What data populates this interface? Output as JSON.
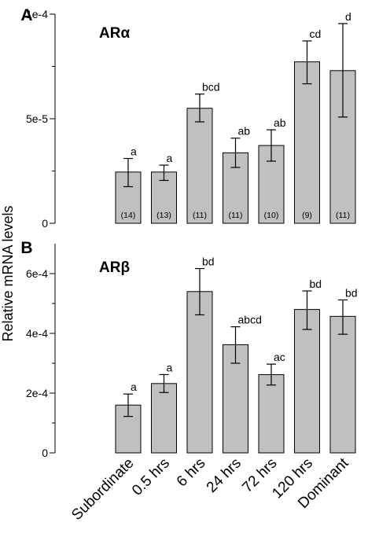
{
  "ylabel": "Relative mRNA levels",
  "categories": [
    "Subordinate",
    "0.5 hrs",
    "6 hrs",
    "24 hrs",
    "72 hrs",
    "120 hrs",
    "Dominant"
  ],
  "chart_data": [
    {
      "type": "bar",
      "panel": "A",
      "title": "ARα",
      "ylabel": "Relative mRNA levels",
      "ylim": [
        0,
        0.0001
      ],
      "ytick_values": [
        0,
        5e-05,
        0.0001
      ],
      "ytick_labels": [
        "0",
        "5e-5",
        "1e-4"
      ],
      "categories": [
        "Subordinate",
        "0.5 hrs",
        "6 hrs",
        "24 hrs",
        "72 hrs",
        "120 hrs",
        "Dominant"
      ],
      "values": [
        2.45e-05,
        2.45e-05,
        5.5e-05,
        3.37e-05,
        3.72e-05,
        7.72e-05,
        7.3e-05
      ],
      "error_low": [
        1.75e-05,
        2.05e-05,
        4.85e-05,
        2.67e-05,
        2.97e-05,
        6.67e-05,
        5.08e-05
      ],
      "error_high": [
        3.1e-05,
        2.78e-05,
        6.18e-05,
        4.07e-05,
        4.47e-05,
        8.72e-05,
        9.55e-05
      ],
      "significance": [
        "a",
        "a",
        "bcd",
        "ab",
        "ab",
        "cd",
        "d"
      ],
      "sample_sizes": [
        "(14)",
        "(13)",
        "(11)",
        "(11)",
        "(10)",
        "(9)",
        "(11)"
      ],
      "bar_color": "#c0c0c0",
      "grid": false
    },
    {
      "type": "bar",
      "panel": "B",
      "title": "ARβ",
      "ylabel": "Relative mRNA levels",
      "ylim": [
        0,
        0.0007
      ],
      "ytick_values": [
        0,
        0.0002,
        0.0004,
        0.0006
      ],
      "ytick_labels": [
        "0",
        "2e-4",
        "4e-4",
        "6e-4"
      ],
      "categories": [
        "Subordinate",
        "0.5 hrs",
        "6 hrs",
        "24 hrs",
        "72 hrs",
        "120 hrs",
        "Dominant"
      ],
      "values": [
        0.00016,
        0.000232,
        0.00054,
        0.000362,
        0.000262,
        0.00048,
        0.000457
      ],
      "error_low": [
        0.000122,
        0.000202,
        0.000462,
        0.0003,
        0.000227,
        0.000413,
        0.000397
      ],
      "error_high": [
        0.000197,
        0.000262,
        0.000617,
        0.000422,
        0.000297,
        0.000542,
        0.000512
      ],
      "significance": [
        "a",
        "a",
        "bd",
        "abcd",
        "ac",
        "bd",
        "bd"
      ],
      "sample_sizes": [],
      "bar_color": "#c0c0c0",
      "grid": false
    }
  ]
}
